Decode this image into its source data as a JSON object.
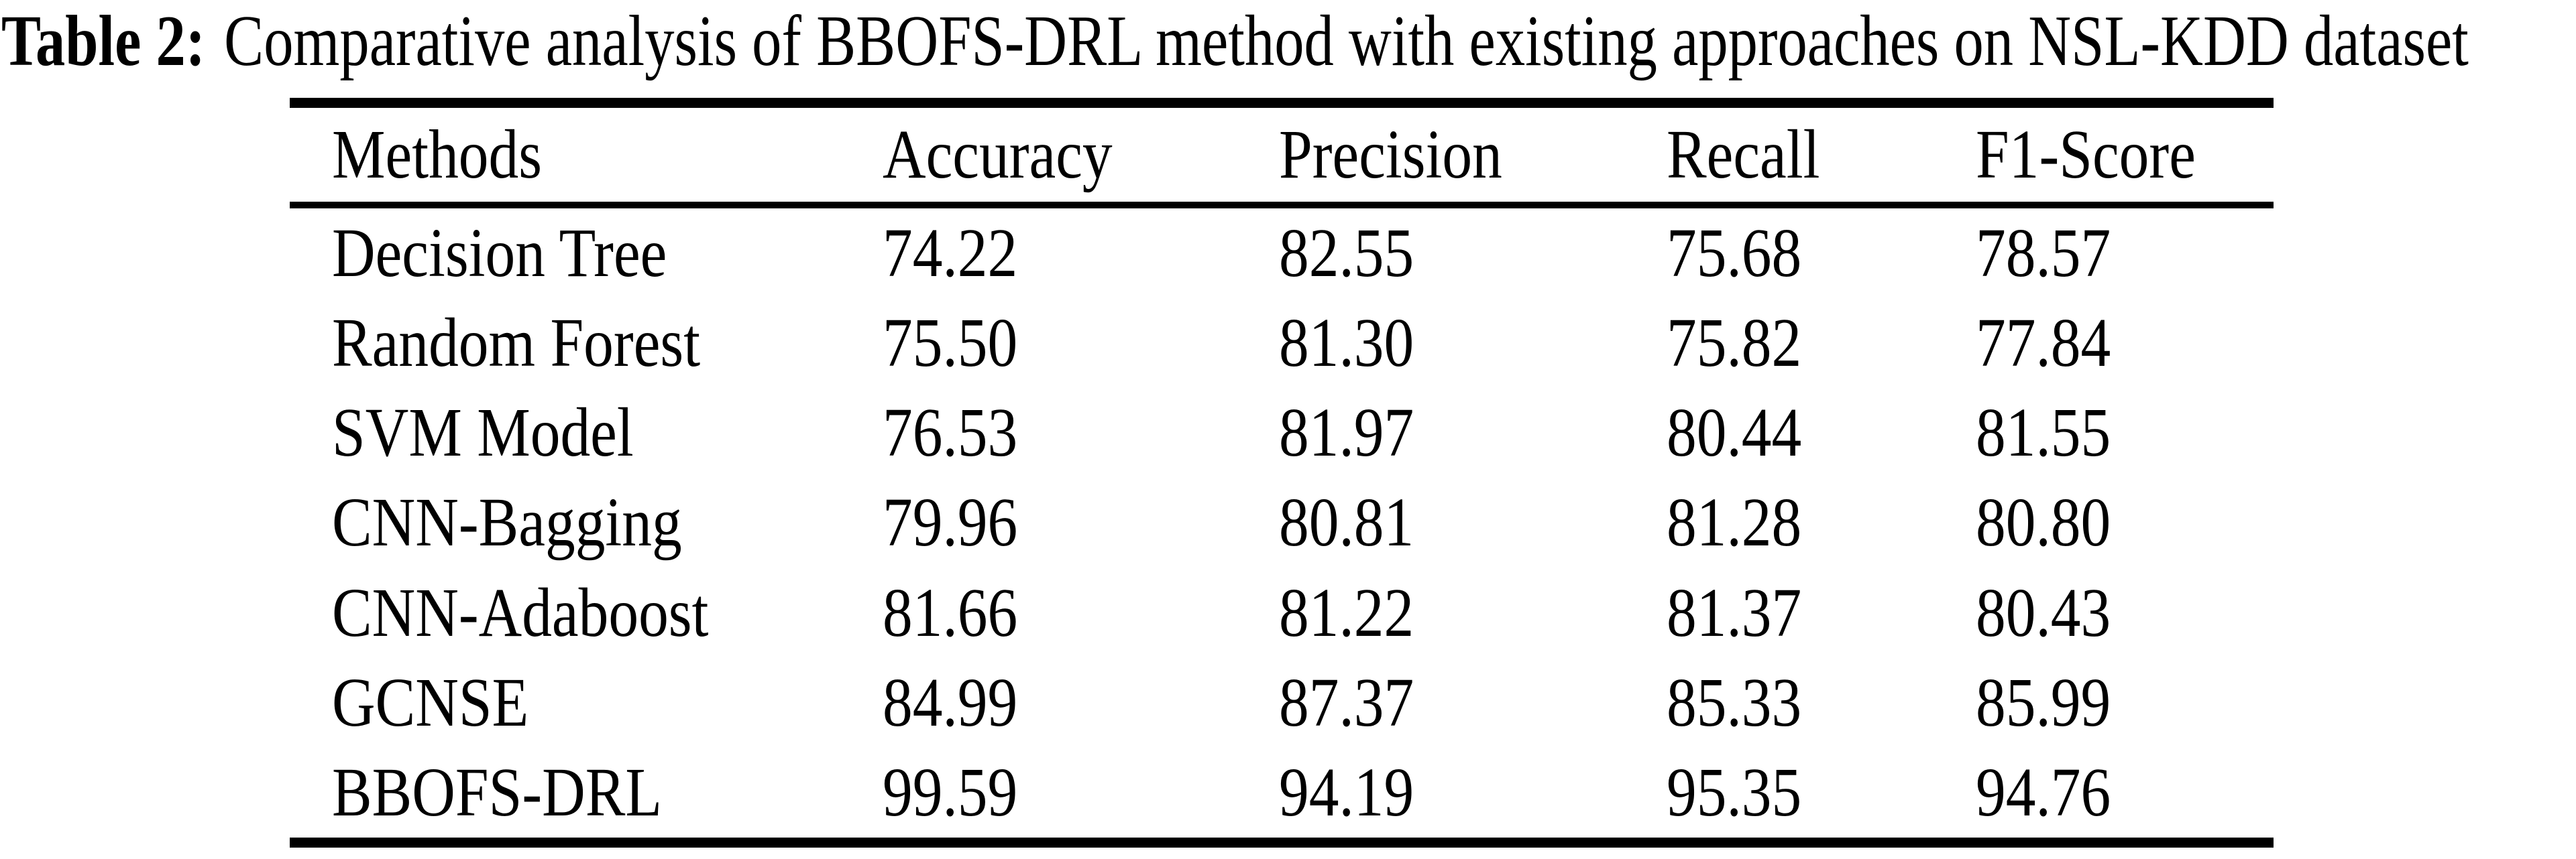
{
  "page": {
    "background_color": "#ffffff",
    "text_color": "#000000",
    "rule_color": "#000000"
  },
  "caption": {
    "label": "Table 2:",
    "text": "Comparative analysis of BBOFS-DRL method with existing approaches on NSL-KDD dataset"
  },
  "chart_data": {
    "type": "table",
    "title": "Table 2: Comparative analysis of BBOFS-DRL method with existing approaches on NSL-KDD dataset",
    "columns": [
      "Methods",
      "Accuracy",
      "Precision",
      "Recall",
      "F1-Score"
    ],
    "rows": [
      [
        "Decision Tree",
        "74.22",
        "82.55",
        "75.68",
        "78.57"
      ],
      [
        "Random Forest",
        "75.50",
        "81.30",
        "75.82",
        "77.84"
      ],
      [
        "SVM Model",
        "76.53",
        "81.97",
        "80.44",
        "81.55"
      ],
      [
        "CNN-Bagging",
        "79.96",
        "80.81",
        "81.28",
        "80.80"
      ],
      [
        "CNN-Adaboost",
        "81.66",
        "81.22",
        "81.37",
        "80.43"
      ],
      [
        "GCNSE",
        "84.99",
        "87.37",
        "85.33",
        "85.99"
      ],
      [
        "BBOFS-DRL",
        "99.59",
        "94.19",
        "95.35",
        "94.76"
      ]
    ]
  }
}
